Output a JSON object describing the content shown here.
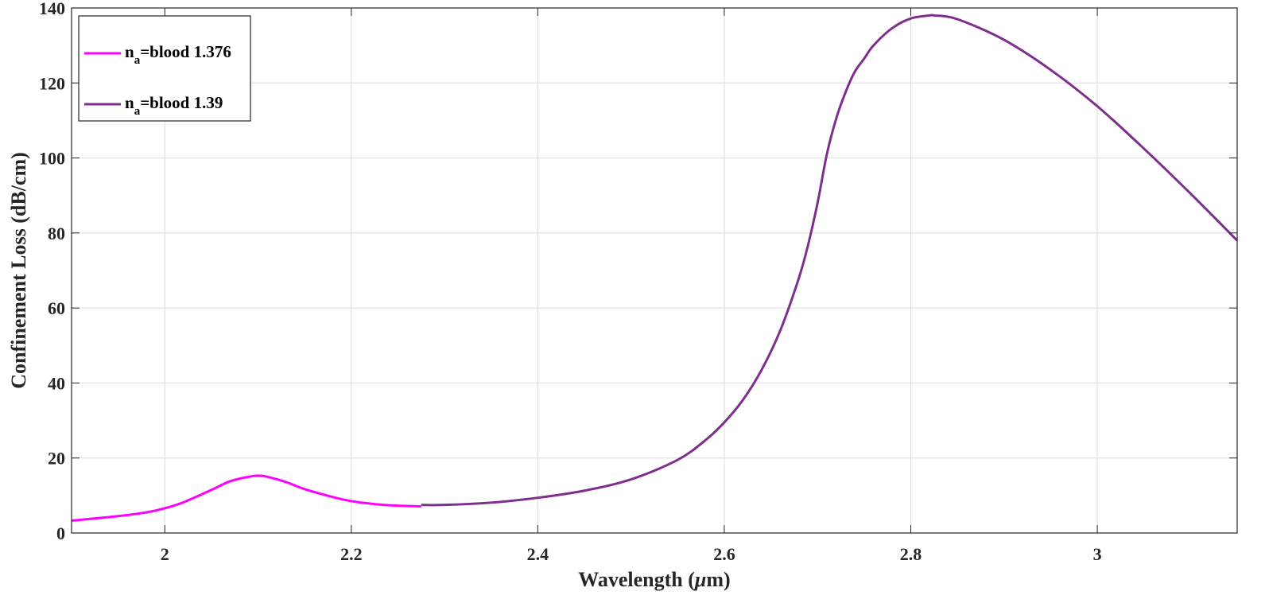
{
  "chart_data": {
    "type": "line",
    "xlabel_main": "Wavelength (",
    "xlabel_mu": "μ",
    "xlabel_unit": "m)",
    "ylabel": "Confinement Loss (dB/cm)",
    "xlim": [
      1.9,
      3.15
    ],
    "ylim": [
      0,
      140
    ],
    "xticks": [
      2,
      2.2,
      2.4,
      2.6,
      2.8,
      3
    ],
    "xtick_labels": [
      "2",
      "2.2",
      "2.4",
      "2.6",
      "2.8",
      "3"
    ],
    "yticks": [
      0,
      20,
      40,
      60,
      80,
      100,
      120,
      140
    ],
    "ytick_labels": [
      "0",
      "20",
      "40",
      "60",
      "80",
      "100",
      "120",
      "140"
    ],
    "grid": true,
    "legend_position": "top-left",
    "series": [
      {
        "legend_base": "n",
        "legend_sub": "a",
        "legend_rest": "=blood 1.376",
        "color": "#ff00ff",
        "x": [
          1.9,
          1.95,
          1.98,
          2.0,
          2.02,
          2.05,
          2.07,
          2.09,
          2.1,
          2.11,
          2.13,
          2.15,
          2.18,
          2.2,
          2.23,
          2.25,
          2.275
        ],
        "y": [
          3.3,
          4.5,
          5.5,
          6.6,
          8.2,
          11.5,
          13.8,
          15.0,
          15.3,
          15.0,
          13.6,
          11.7,
          9.6,
          8.5,
          7.6,
          7.3,
          7.1
        ]
      },
      {
        "legend_base": "n",
        "legend_sub": "a",
        "legend_rest": "=blood 1.39",
        "color": "#7e2f8e",
        "x": [
          2.275,
          2.3,
          2.35,
          2.4,
          2.45,
          2.5,
          2.55,
          2.58,
          2.6,
          2.62,
          2.64,
          2.66,
          2.68,
          2.69,
          2.7,
          2.71,
          2.72,
          2.73,
          2.74,
          2.75,
          2.76,
          2.78,
          2.8,
          2.82,
          2.825,
          2.85,
          2.9,
          2.95,
          3.0,
          3.05,
          3.1,
          3.15
        ],
        "y": [
          7.5,
          7.5,
          8.1,
          9.4,
          11.3,
          14.3,
          19.5,
          24.8,
          29.5,
          35.5,
          43.5,
          54.0,
          68.0,
          77.0,
          88.0,
          101.0,
          110.5,
          117.5,
          123.0,
          126.5,
          130.0,
          134.6,
          137.2,
          138.0,
          138.0,
          137.0,
          131.5,
          123.5,
          113.8,
          102.5,
          90.5,
          78.0
        ]
      }
    ]
  }
}
